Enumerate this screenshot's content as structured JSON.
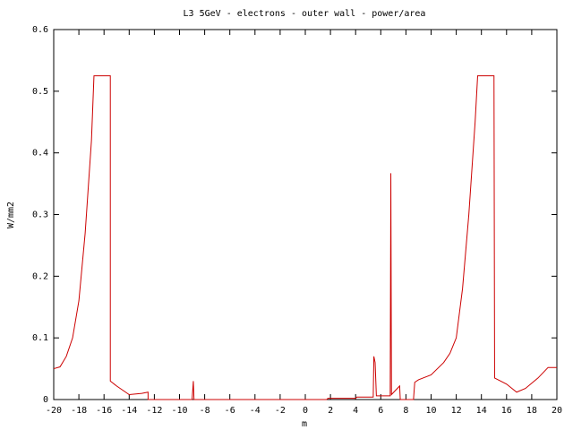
{
  "chart_data": {
    "type": "line",
    "title": "L3 5GeV - electrons -  outer wall - power/area",
    "x_label": "m",
    "y_label": "W/mm2",
    "x": [
      -20,
      -19.5,
      -19,
      -18.5,
      -18,
      -17.5,
      -17,
      -16.8,
      -15.5,
      -15.5,
      -15,
      -14,
      -13,
      -12.5,
      -12.5,
      -9,
      -8.9,
      -8.85,
      1.7,
      1.8,
      4,
      4.1,
      5.4,
      5.45,
      5.55,
      5.65,
      6.75,
      6.8,
      6.85,
      7.5,
      7.55,
      8.6,
      8.7,
      9,
      10,
      11,
      11.5,
      12,
      12.5,
      13,
      13.5,
      13.7,
      15,
      15.05,
      16,
      16.8,
      17.5,
      18.5,
      19.3,
      20
    ],
    "series": [
      {
        "color": "#cc0000",
        "values": [
          0.05,
          0.053,
          0.07,
          0.1,
          0.16,
          0.27,
          0.42,
          0.525,
          0.525,
          0.03,
          0.022,
          0.008,
          0.01,
          0.012,
          0,
          0,
          0.03,
          0,
          0,
          0.002,
          0.002,
          0.004,
          0.004,
          0.07,
          0.06,
          0.006,
          0.006,
          0.367,
          0.008,
          0.022,
          0,
          0,
          0.028,
          0.032,
          0.04,
          0.06,
          0.075,
          0.1,
          0.18,
          0.3,
          0.45,
          0.525,
          0.525,
          0.035,
          0.025,
          0.012,
          0.018,
          0.035,
          0.052,
          0.052
        ]
      }
    ],
    "xlim": [
      -20,
      20
    ],
    "xticks": [
      -20,
      -18,
      -16,
      -14,
      -12,
      -10,
      -8,
      -6,
      -4,
      -2,
      0,
      2,
      4,
      6,
      8,
      10,
      12,
      14,
      16,
      18,
      20
    ],
    "ylim": [
      0,
      0.6
    ],
    "yticks": [
      0,
      0.1,
      0.2,
      0.3,
      0.4,
      0.5,
      0.6
    ],
    "grid": false
  }
}
